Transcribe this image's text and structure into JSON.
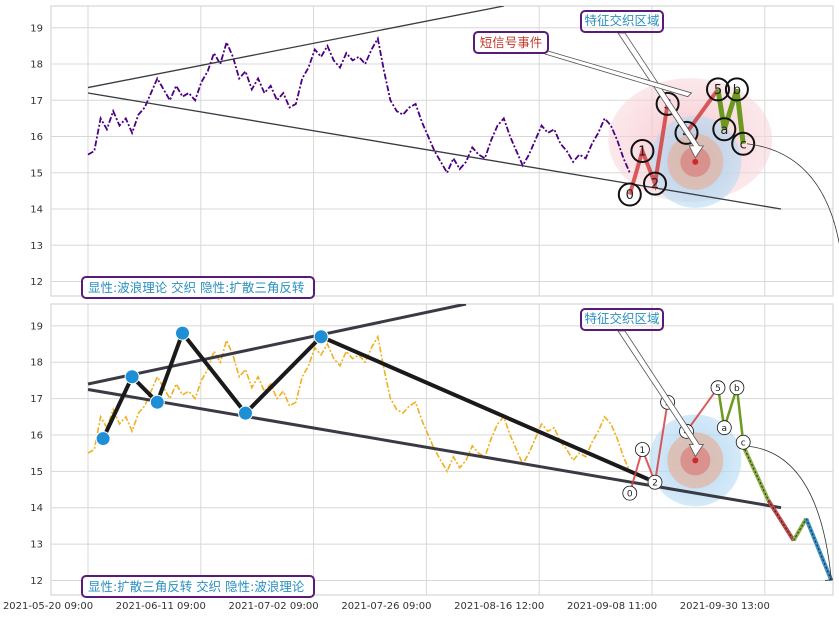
{
  "x_ticks": [
    "2021-05-20 09:00",
    "2021-06-11 09:00",
    "2021-07-02 09:00",
    "2021-07-26 09:00",
    "2021-08-16 12:00",
    "2021-09-08 11:00",
    "2021-09-30 13:00"
  ],
  "colors": {
    "top_price": "#4b0082",
    "bottom_price": "#f0b020",
    "trend": "#3a3a44",
    "wave_red": "#d44040",
    "wave_green": "#6c9a1e",
    "swing_dot": "#1e8fd4",
    "label_text": "#2a8fc0",
    "label_border": "#5a1a7a",
    "zone_pink": "#f5c0c8",
    "zone_blue": "#a8d4f0",
    "dash_green": "#8caf44",
    "dash_red": "#c04a4a",
    "dash_blue": "#3a90c8"
  },
  "chart_data": [
    {
      "type": "line",
      "panel": "top",
      "ylim": [
        11.6,
        19.6
      ],
      "yticks": [
        12,
        13,
        14,
        15,
        16,
        17,
        18,
        19
      ],
      "x_range": [
        0,
        56
      ],
      "annotations": {
        "corner_label": "显性:波浪理论 交织 隐性:扩散三角反转",
        "zone_label": "特征交织区域",
        "event_label": "短信号事件"
      },
      "price_series": [
        [
          0,
          15.5
        ],
        [
          0.5,
          15.6
        ],
        [
          1,
          16.5
        ],
        [
          1.5,
          16.2
        ],
        [
          2,
          16.7
        ],
        [
          2.5,
          16.3
        ],
        [
          3,
          16.5
        ],
        [
          3.5,
          16.1
        ],
        [
          4,
          16.6
        ],
        [
          4.5,
          16.8
        ],
        [
          5,
          17.2
        ],
        [
          5.5,
          17.6
        ],
        [
          6,
          17.3
        ],
        [
          6.5,
          17.0
        ],
        [
          7,
          17.4
        ],
        [
          7.5,
          17.1
        ],
        [
          8,
          17.2
        ],
        [
          8.5,
          17.0
        ],
        [
          9,
          17.5
        ],
        [
          9.5,
          17.8
        ],
        [
          10,
          18.3
        ],
        [
          10.5,
          18.0
        ],
        [
          11,
          18.6
        ],
        [
          11.5,
          18.2
        ],
        [
          12,
          17.6
        ],
        [
          12.5,
          17.8
        ],
        [
          13,
          17.3
        ],
        [
          13.5,
          17.6
        ],
        [
          14,
          17.2
        ],
        [
          14.5,
          17.4
        ],
        [
          15,
          17.0
        ],
        [
          15.5,
          17.2
        ],
        [
          16,
          16.8
        ],
        [
          16.5,
          16.9
        ],
        [
          17,
          17.6
        ],
        [
          17.5,
          17.9
        ],
        [
          18,
          18.4
        ],
        [
          18.5,
          18.2
        ],
        [
          19,
          18.5
        ],
        [
          19.5,
          18.1
        ],
        [
          20,
          17.9
        ],
        [
          20.5,
          18.3
        ],
        [
          21,
          18.1
        ],
        [
          21.5,
          18.2
        ],
        [
          22,
          18.0
        ],
        [
          22.5,
          18.4
        ],
        [
          23,
          18.7
        ],
        [
          23.5,
          17.8
        ],
        [
          24,
          17.0
        ],
        [
          24.5,
          16.7
        ],
        [
          25,
          16.6
        ],
        [
          25.5,
          16.8
        ],
        [
          26,
          16.9
        ],
        [
          26.5,
          16.4
        ],
        [
          27,
          16.0
        ],
        [
          27.5,
          15.6
        ],
        [
          28,
          15.3
        ],
        [
          28.5,
          15.0
        ],
        [
          29,
          15.4
        ],
        [
          29.5,
          15.1
        ],
        [
          30,
          15.3
        ],
        [
          30.5,
          15.7
        ],
        [
          31,
          15.5
        ],
        [
          31.5,
          15.4
        ],
        [
          32,
          15.9
        ],
        [
          32.5,
          16.3
        ],
        [
          33,
          16.5
        ],
        [
          33.5,
          16.0
        ],
        [
          34,
          15.6
        ],
        [
          34.5,
          15.2
        ],
        [
          35,
          15.5
        ],
        [
          35.5,
          15.9
        ],
        [
          36,
          16.3
        ],
        [
          36.5,
          16.1
        ],
        [
          37,
          16.2
        ],
        [
          37.5,
          15.8
        ],
        [
          38,
          15.6
        ],
        [
          38.5,
          15.3
        ],
        [
          39,
          15.5
        ],
        [
          39.5,
          15.4
        ],
        [
          40,
          15.8
        ],
        [
          40.5,
          16.1
        ],
        [
          41,
          16.5
        ],
        [
          41.5,
          16.3
        ],
        [
          42,
          15.9
        ],
        [
          42.5,
          15.4
        ],
        [
          43,
          15.0
        ]
      ],
      "wave_points": [
        {
          "label": "0",
          "x": 43,
          "y": 14.4
        },
        {
          "label": "1",
          "x": 44,
          "y": 15.6
        },
        {
          "label": "2",
          "x": 45,
          "y": 14.7
        },
        {
          "label": "3",
          "x": 46,
          "y": 16.9
        },
        {
          "label": "4",
          "x": 47.5,
          "y": 16.1
        },
        {
          "label": "5",
          "x": 50,
          "y": 17.3
        },
        {
          "label": "a",
          "x": 50.5,
          "y": 16.2
        },
        {
          "label": "b",
          "x": 51.5,
          "y": 17.3
        },
        {
          "label": "c",
          "x": 52,
          "y": 15.8
        }
      ],
      "trendlines": [
        {
          "from": [
            0,
            17.35
          ],
          "to": [
            33,
            19.6
          ]
        },
        {
          "from": [
            0,
            17.2
          ],
          "to": [
            55,
            14.0
          ]
        }
      ]
    },
    {
      "type": "line",
      "panel": "bottom",
      "ylim": [
        11.6,
        19.6
      ],
      "yticks": [
        12,
        13,
        14,
        15,
        16,
        17,
        18,
        19
      ],
      "x_range": [
        0,
        56
      ],
      "annotations": {
        "corner_label": "显性:扩散三角反转 交织 隐性:波浪理论",
        "zone_label": "特征交织区域"
      },
      "swing_points": [
        {
          "x": 1.2,
          "y": 15.9
        },
        {
          "x": 3.5,
          "y": 17.6
        },
        {
          "x": 5.5,
          "y": 16.9
        },
        {
          "x": 7.5,
          "y": 18.8
        },
        {
          "x": 12.5,
          "y": 16.6
        },
        {
          "x": 18.5,
          "y": 18.7
        },
        {
          "x": 45,
          "y": 14.7
        }
      ],
      "wave_points": [
        {
          "label": "0",
          "x": 43,
          "y": 14.4
        },
        {
          "label": "1",
          "x": 44,
          "y": 15.6
        },
        {
          "label": "2",
          "x": 45,
          "y": 14.7
        },
        {
          "label": "3",
          "x": 46,
          "y": 16.9
        },
        {
          "label": "4",
          "x": 47.5,
          "y": 16.1
        },
        {
          "label": "5",
          "x": 50,
          "y": 17.3
        },
        {
          "label": "a",
          "x": 50.5,
          "y": 16.2
        },
        {
          "label": "b",
          "x": 51.5,
          "y": 17.3
        },
        {
          "label": "c",
          "x": 52,
          "y": 15.8
        }
      ],
      "trendlines": [
        {
          "from": [
            0,
            17.4
          ],
          "to": [
            30,
            19.6
          ]
        },
        {
          "from": [
            0,
            17.25
          ],
          "to": [
            55,
            14.0
          ]
        }
      ],
      "projection": [
        {
          "x": 52,
          "y": 15.7
        },
        {
          "x": 54,
          "y": 14.2
        },
        {
          "x": 56,
          "y": 13.1
        },
        {
          "x": 57,
          "y": 13.7
        },
        {
          "x": 59,
          "y": 12.0
        }
      ]
    }
  ]
}
